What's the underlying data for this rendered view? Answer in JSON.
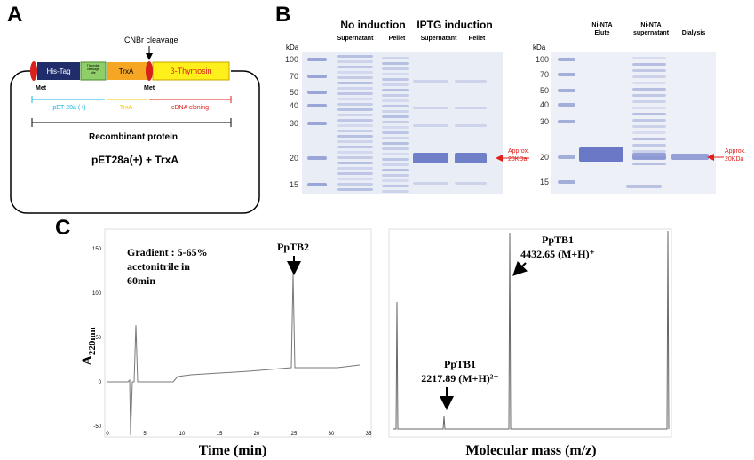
{
  "panel_a": {
    "label": "A",
    "his_tag": "His-Tag",
    "thrombin": [
      "Thrombin",
      "cleavage",
      "site"
    ],
    "trxa": "TrxA",
    "thymosin": "β-Thymosin",
    "cnbr": "CNBr cleavage",
    "met_1": "Met",
    "met_2": "Met",
    "range_vector": "pET-28a (+)",
    "range_trxa": "TrxA",
    "range_cdna": "cDNA cloning",
    "recombinant": "Recombinant protein",
    "construct": "pET28a(+) + TrxA"
  },
  "panel_b": {
    "label": "B",
    "left_gel": {
      "kda": "kDa",
      "ladder": [
        "100",
        "70",
        "50",
        "40",
        "30",
        "20",
        "15"
      ],
      "group_1": "No induction",
      "group_2": "IPTG induction",
      "lanes": [
        "Supernatant",
        "Pellet",
        "Supernatant",
        "Pellet"
      ],
      "approx": [
        "Approx.",
        "20KDa"
      ]
    },
    "right_gel": {
      "kda": "kDa",
      "ladder": [
        "100",
        "70",
        "50",
        "40",
        "30",
        "20",
        "15"
      ],
      "lane_1": [
        "Ni-NTA",
        "Elute"
      ],
      "lane_2": [
        "Ni-NTA",
        "supernatant"
      ],
      "lane_3": "Dialysis",
      "approx": [
        "Approx.",
        "20KDa"
      ]
    }
  },
  "panel_c": {
    "label": "C",
    "hplc": {
      "yticks": [
        "150",
        "100",
        "50",
        "0",
        "-50"
      ],
      "xticks": [
        "0",
        "5",
        "10",
        "15",
        "20",
        "25",
        "30",
        "35"
      ],
      "gradient": [
        "Gradient : 5-65%",
        "acetonitrile  in",
        "60min"
      ],
      "peak": "PpTB2",
      "ylabel": "A",
      "ylabel_sub": "220nm",
      "xlabel": "Time (min)"
    },
    "ms": {
      "peak_1_name": "PpTB1",
      "peak_1_mass": "4432.65 (M+H)⁺",
      "peak_2_name": "PpTB1",
      "peak_2_mass": "2217.89 (M+H)²⁺",
      "xlabel": "Molecular mass (m/z)"
    }
  }
}
